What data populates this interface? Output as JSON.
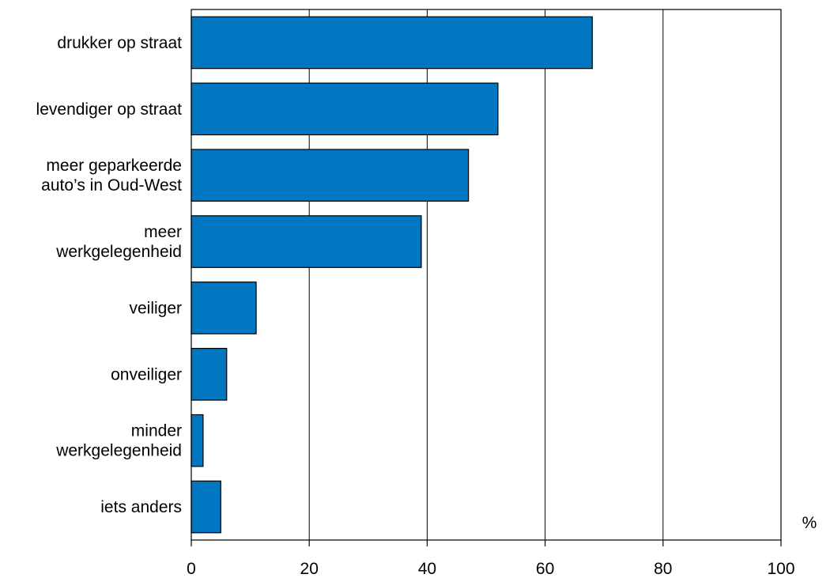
{
  "chart_data": {
    "type": "bar",
    "orientation": "horizontal",
    "categories": [
      [
        "drukker op straat"
      ],
      [
        "levendiger op straat"
      ],
      [
        "meer geparkeerde",
        "auto’s in Oud-West"
      ],
      [
        "meer",
        "werkgelegenheid"
      ],
      [
        "veiliger"
      ],
      [
        "onveiliger"
      ],
      [
        "minder",
        "werkgelegenheid"
      ],
      [
        "iets anders"
      ]
    ],
    "values": [
      68,
      52,
      47,
      39,
      11,
      6,
      2,
      5
    ],
    "xlim": [
      0,
      100
    ],
    "xticks": [
      0,
      20,
      40,
      60,
      80,
      100
    ],
    "unit_label": "%",
    "grid": "vertical",
    "bar_color": "#0077c0",
    "bar_edge_color": "#000000"
  }
}
